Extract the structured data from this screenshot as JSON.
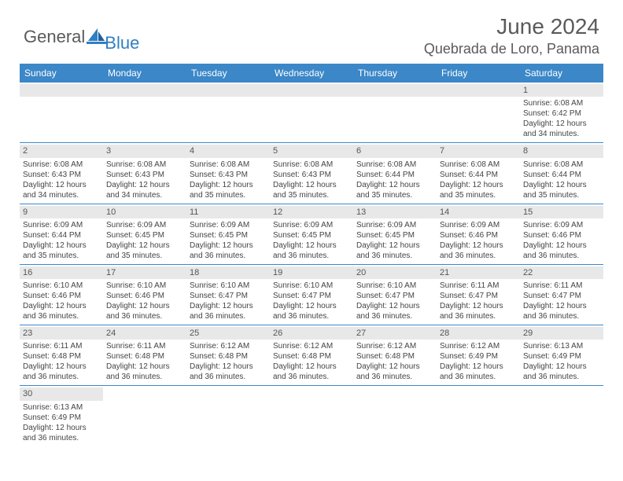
{
  "logo": {
    "text1": "General",
    "text2": "Blue"
  },
  "title": "June 2024",
  "location": "Quebrada de Loro, Panama",
  "colors": {
    "header_bg": "#3b87c8",
    "header_text": "#ffffff",
    "daybar_bg": "#e8e8e8",
    "text": "#444444",
    "logo_gray": "#5a5a5a",
    "logo_blue": "#2f7fc2",
    "row_border": "#3b87c8"
  },
  "weekdays": [
    "Sunday",
    "Monday",
    "Tuesday",
    "Wednesday",
    "Thursday",
    "Friday",
    "Saturday"
  ],
  "weeks": [
    [
      null,
      null,
      null,
      null,
      null,
      null,
      {
        "d": "1",
        "sr": "6:08 AM",
        "ss": "6:42 PM",
        "dl": "12 hours and 34 minutes."
      }
    ],
    [
      {
        "d": "2",
        "sr": "6:08 AM",
        "ss": "6:43 PM",
        "dl": "12 hours and 34 minutes."
      },
      {
        "d": "3",
        "sr": "6:08 AM",
        "ss": "6:43 PM",
        "dl": "12 hours and 34 minutes."
      },
      {
        "d": "4",
        "sr": "6:08 AM",
        "ss": "6:43 PM",
        "dl": "12 hours and 35 minutes."
      },
      {
        "d": "5",
        "sr": "6:08 AM",
        "ss": "6:43 PM",
        "dl": "12 hours and 35 minutes."
      },
      {
        "d": "6",
        "sr": "6:08 AM",
        "ss": "6:44 PM",
        "dl": "12 hours and 35 minutes."
      },
      {
        "d": "7",
        "sr": "6:08 AM",
        "ss": "6:44 PM",
        "dl": "12 hours and 35 minutes."
      },
      {
        "d": "8",
        "sr": "6:08 AM",
        "ss": "6:44 PM",
        "dl": "12 hours and 35 minutes."
      }
    ],
    [
      {
        "d": "9",
        "sr": "6:09 AM",
        "ss": "6:44 PM",
        "dl": "12 hours and 35 minutes."
      },
      {
        "d": "10",
        "sr": "6:09 AM",
        "ss": "6:45 PM",
        "dl": "12 hours and 35 minutes."
      },
      {
        "d": "11",
        "sr": "6:09 AM",
        "ss": "6:45 PM",
        "dl": "12 hours and 36 minutes."
      },
      {
        "d": "12",
        "sr": "6:09 AM",
        "ss": "6:45 PM",
        "dl": "12 hours and 36 minutes."
      },
      {
        "d": "13",
        "sr": "6:09 AM",
        "ss": "6:45 PM",
        "dl": "12 hours and 36 minutes."
      },
      {
        "d": "14",
        "sr": "6:09 AM",
        "ss": "6:46 PM",
        "dl": "12 hours and 36 minutes."
      },
      {
        "d": "15",
        "sr": "6:09 AM",
        "ss": "6:46 PM",
        "dl": "12 hours and 36 minutes."
      }
    ],
    [
      {
        "d": "16",
        "sr": "6:10 AM",
        "ss": "6:46 PM",
        "dl": "12 hours and 36 minutes."
      },
      {
        "d": "17",
        "sr": "6:10 AM",
        "ss": "6:46 PM",
        "dl": "12 hours and 36 minutes."
      },
      {
        "d": "18",
        "sr": "6:10 AM",
        "ss": "6:47 PM",
        "dl": "12 hours and 36 minutes."
      },
      {
        "d": "19",
        "sr": "6:10 AM",
        "ss": "6:47 PM",
        "dl": "12 hours and 36 minutes."
      },
      {
        "d": "20",
        "sr": "6:10 AM",
        "ss": "6:47 PM",
        "dl": "12 hours and 36 minutes."
      },
      {
        "d": "21",
        "sr": "6:11 AM",
        "ss": "6:47 PM",
        "dl": "12 hours and 36 minutes."
      },
      {
        "d": "22",
        "sr": "6:11 AM",
        "ss": "6:47 PM",
        "dl": "12 hours and 36 minutes."
      }
    ],
    [
      {
        "d": "23",
        "sr": "6:11 AM",
        "ss": "6:48 PM",
        "dl": "12 hours and 36 minutes."
      },
      {
        "d": "24",
        "sr": "6:11 AM",
        "ss": "6:48 PM",
        "dl": "12 hours and 36 minutes."
      },
      {
        "d": "25",
        "sr": "6:12 AM",
        "ss": "6:48 PM",
        "dl": "12 hours and 36 minutes."
      },
      {
        "d": "26",
        "sr": "6:12 AM",
        "ss": "6:48 PM",
        "dl": "12 hours and 36 minutes."
      },
      {
        "d": "27",
        "sr": "6:12 AM",
        "ss": "6:48 PM",
        "dl": "12 hours and 36 minutes."
      },
      {
        "d": "28",
        "sr": "6:12 AM",
        "ss": "6:49 PM",
        "dl": "12 hours and 36 minutes."
      },
      {
        "d": "29",
        "sr": "6:13 AM",
        "ss": "6:49 PM",
        "dl": "12 hours and 36 minutes."
      }
    ],
    [
      {
        "d": "30",
        "sr": "6:13 AM",
        "ss": "6:49 PM",
        "dl": "12 hours and 36 minutes."
      },
      null,
      null,
      null,
      null,
      null,
      null
    ]
  ],
  "labels": {
    "sunrise": "Sunrise:",
    "sunset": "Sunset:",
    "daylight": "Daylight:"
  }
}
